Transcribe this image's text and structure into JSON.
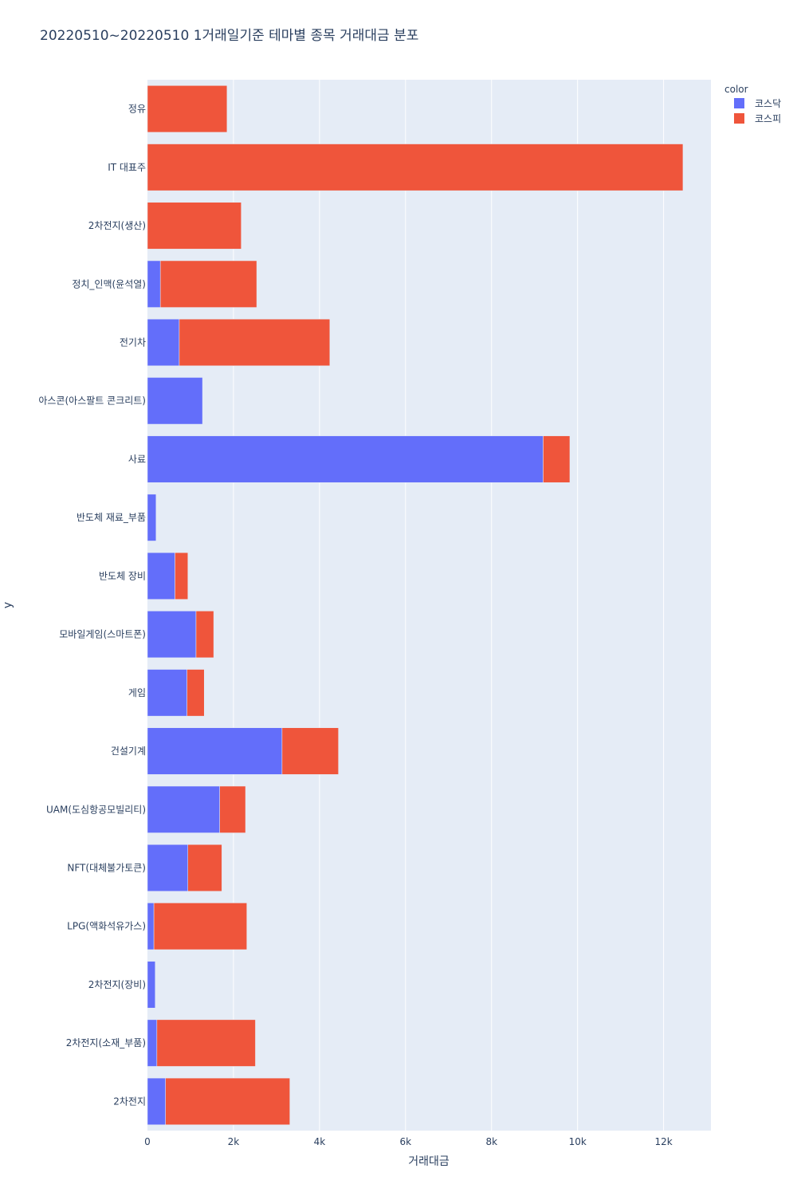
{
  "chart_data": {
    "type": "bar",
    "orientation": "horizontal",
    "barmode": "stack",
    "title": "20220510~20220510 1거래일기준 테마별 종목 거래대금 분포",
    "xlabel": "거래대금",
    "ylabel": "y",
    "xlim": [
      0,
      13100
    ],
    "x_ticks": [
      0,
      2000,
      4000,
      6000,
      8000,
      10000,
      12000
    ],
    "x_tick_labels": [
      "0",
      "2k",
      "4k",
      "6k",
      "8k",
      "10k",
      "12k"
    ],
    "grid": true,
    "legend": {
      "title": "color",
      "position": "top-right"
    },
    "categories": [
      "정유",
      "IT 대표주",
      "2차전지(생산)",
      "정치_인맥(윤석열)",
      "전기차",
      "아스콘(아스팔트 콘크리트)",
      "사료",
      "반도체 재료_부품",
      "반도체 장비",
      "모바일게임(스마트폰)",
      "게임",
      "건설기계",
      "UAM(도심항공모빌리티)",
      "NFT(대체불가토큰)",
      "LPG(액화석유가스)",
      "2차전지(장비)",
      "2차전지(소재_부품)",
      "2차전지"
    ],
    "series": [
      {
        "name": "코스닥",
        "color": "#636efa",
        "values": [
          0,
          0,
          0,
          300,
          740,
          1280,
          9200,
          200,
          640,
          1130,
          920,
          3130,
          1680,
          940,
          150,
          180,
          220,
          420
        ]
      },
      {
        "name": "코스피",
        "color": "#ef553b",
        "values": [
          1850,
          12450,
          2180,
          2240,
          3500,
          0,
          620,
          0,
          300,
          410,
          400,
          1310,
          600,
          790,
          2160,
          0,
          2290,
          2890
        ]
      }
    ]
  },
  "colors": {
    "plot_bg": "#e5ecf6",
    "grid": "#ffffff",
    "text": "#2a3f5f"
  }
}
